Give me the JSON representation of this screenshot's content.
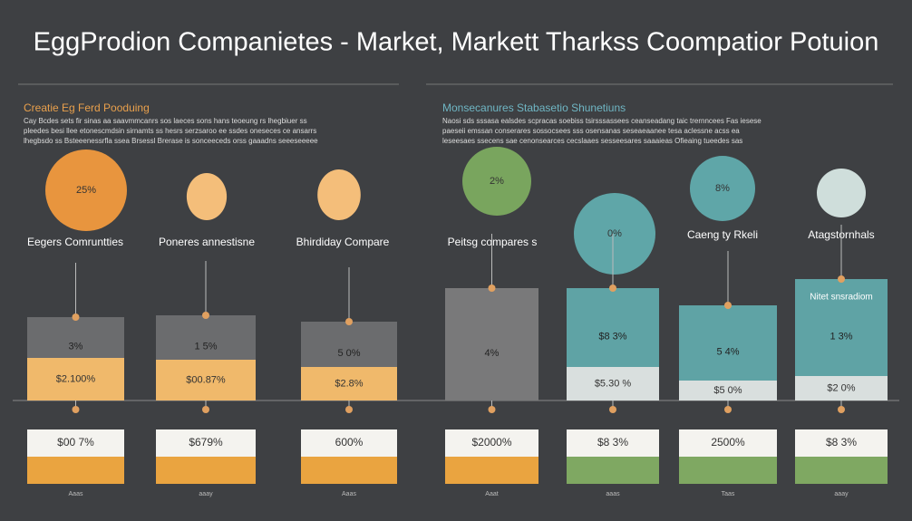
{
  "header": {
    "title": "EggProdion Companietes - Market, Markett Tharkss Coompatior Potuion"
  },
  "left_section": {
    "heading": "Creatie Eg Ferd Pooduing",
    "lines": [
      "Cay Bcdes sets fir sinas aa saavmmcanrs sos laeces sons hans teoeung rs lhegbiuer ss",
      "pleedes besi llee etonescmdsin sirnamts ss hesrs serzsaroo ee ssdes oneseces ce ansarrs",
      "lhegbsdo ss Bsteeenessrfla ssea Brsessl Brerase is sonceeceds orss gaaadns seeeseeeee"
    ]
  },
  "right_section": {
    "heading": "Monsecanures Stabasetio Shunetiuns",
    "lines": [
      "Naosi sds sssasa ealsdes scpracas soebiss tsirsssassees ceanseadang taic trernncees Fas iesese",
      "paeseii emssan conserares sossocsees sss osensanas seseaeaanee tesa aclessne acss ea",
      "leseesaes ssecens sae cenonsearces cecslaaes sesseesares saaaieas Ofieaing tueedes sas"
    ]
  },
  "columns": [
    {
      "label": "Eegers Comruntties",
      "circle": "25%",
      "upper": "3%",
      "lower": "$2.100%",
      "box": "$00 7%",
      "foot": "Aaas"
    },
    {
      "label": "Poneres annestisne",
      "circle": null,
      "upper": "1 5%",
      "lower": "$00.87%",
      "box": "$679%",
      "foot": "aaay"
    },
    {
      "label": "Bhirdiday Compare",
      "circle": null,
      "upper": "5 0%",
      "lower": "$2.8%",
      "box": "600%",
      "foot": "Aaas"
    },
    {
      "label": "Peitsg compares s",
      "circle": "2%",
      "upper": "4%",
      "lower": null,
      "box": "$2000%",
      "foot": "Aaat"
    },
    {
      "label": null,
      "circle": "0%",
      "upper": "$8 3%",
      "lower": "$5.30 %",
      "box": "$8 3%",
      "foot": "aaas"
    },
    {
      "label": "Caeng ty Rkeli",
      "circle": "8%",
      "upper": "5 4%",
      "lower": "$5 0%",
      "box": "2500%",
      "foot": "Taas"
    },
    {
      "label": "Atagstornhals",
      "circle": null,
      "tag": "Nitet snsradiom",
      "upper": "1 3%",
      "lower": "$2 0%",
      "box": "$8 3%",
      "foot": "aaay"
    }
  ]
}
